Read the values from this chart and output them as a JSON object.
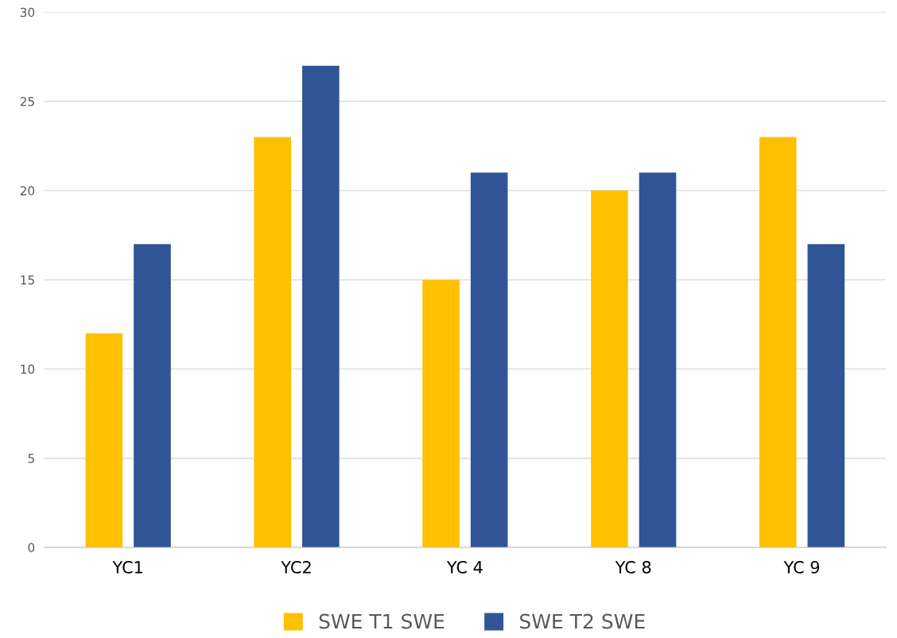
{
  "chart_data": {
    "type": "bar",
    "categories": [
      "YC1",
      "YC2",
      "YC 4",
      "YC 8",
      "YC 9"
    ],
    "series": [
      {
        "name": "SWE T1 SWE",
        "color": "#ffc000",
        "values": [
          12,
          23,
          15,
          20,
          23
        ]
      },
      {
        "name": "SWE T2 SWE",
        "color": "#2f5597",
        "values": [
          17,
          27,
          21,
          21,
          17
        ]
      }
    ],
    "ylim": [
      0,
      30
    ],
    "yticks": [
      0,
      5,
      10,
      15,
      20,
      25,
      30
    ],
    "grid": "y",
    "legend": "bottom"
  }
}
